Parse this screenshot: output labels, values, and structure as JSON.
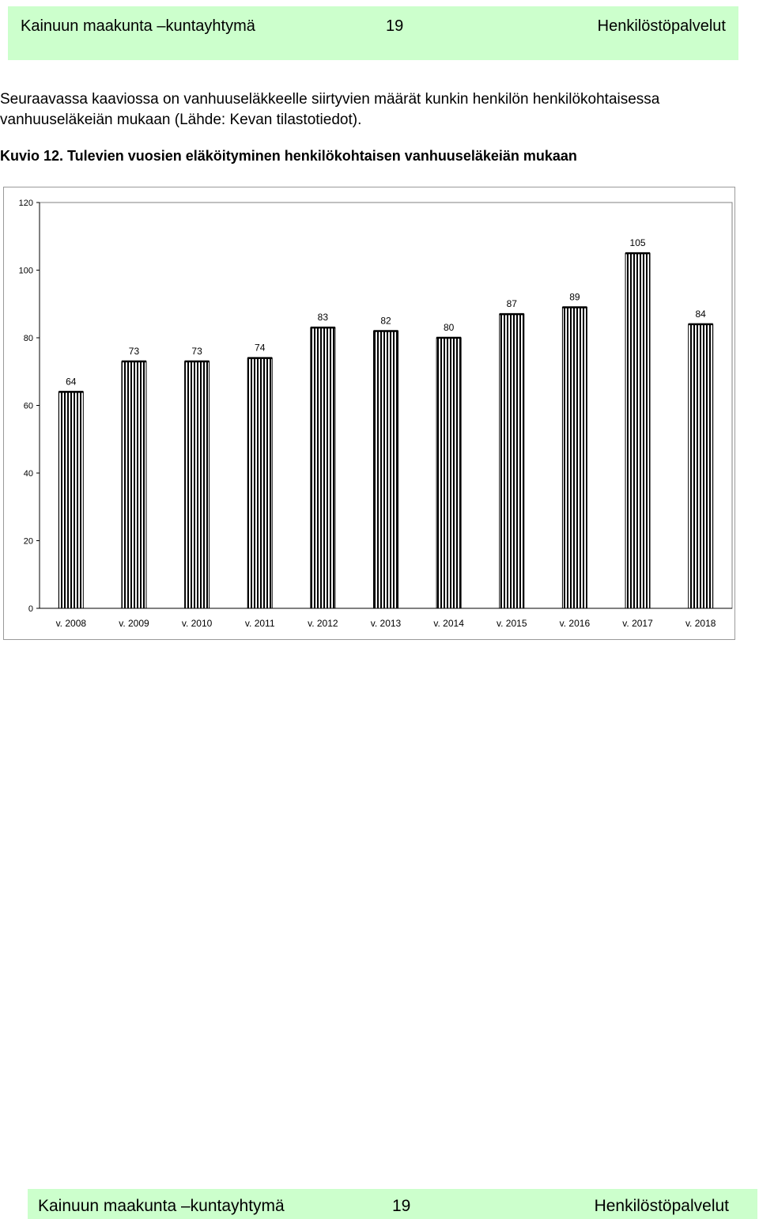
{
  "header": {
    "org": "Kainuun maakunta –kuntayhtymä",
    "page": "19",
    "dept": "Henkilöstöpalvelut"
  },
  "intro": {
    "line1": "Seuraavassa kaaviossa on vanhuuseläkkeelle siirtyvien määrät kunkin henkilön henkilökohtaisessa",
    "line2": "vanhuuseläkeiän mukaan (Lähde: Kevan tilastotiedot)."
  },
  "caption": "Kuvio 12. Tulevien vuosien eläköityminen henkilökohtaisen vanhuuseläkeiän mukaan",
  "chart_data": {
    "type": "bar",
    "categories": [
      "v. 2008",
      "v. 2009",
      "v. 2010",
      "v. 2011",
      "v. 2012",
      "v. 2013",
      "v. 2014",
      "v. 2015",
      "v. 2016",
      "v. 2017",
      "v. 2018"
    ],
    "values": [
      64,
      73,
      73,
      74,
      83,
      82,
      80,
      87,
      89,
      105,
      84
    ],
    "yticks": [
      "0",
      "20",
      "40",
      "60",
      "80",
      "100",
      "120"
    ],
    "ylim": [
      0,
      120
    ],
    "grid": false,
    "legend": "none",
    "bar_fill": "vertical black stripes on white",
    "colors": {
      "bar_stroke": "#000000",
      "stripe": "#000000",
      "frame": "#9a9a9a"
    }
  },
  "footer": {
    "org": "Kainuun maakunta –kuntayhtymä",
    "page": "19",
    "dept": "Henkilöstöpalvelut"
  },
  "colors": {
    "header_bg": "#ccffcc"
  }
}
